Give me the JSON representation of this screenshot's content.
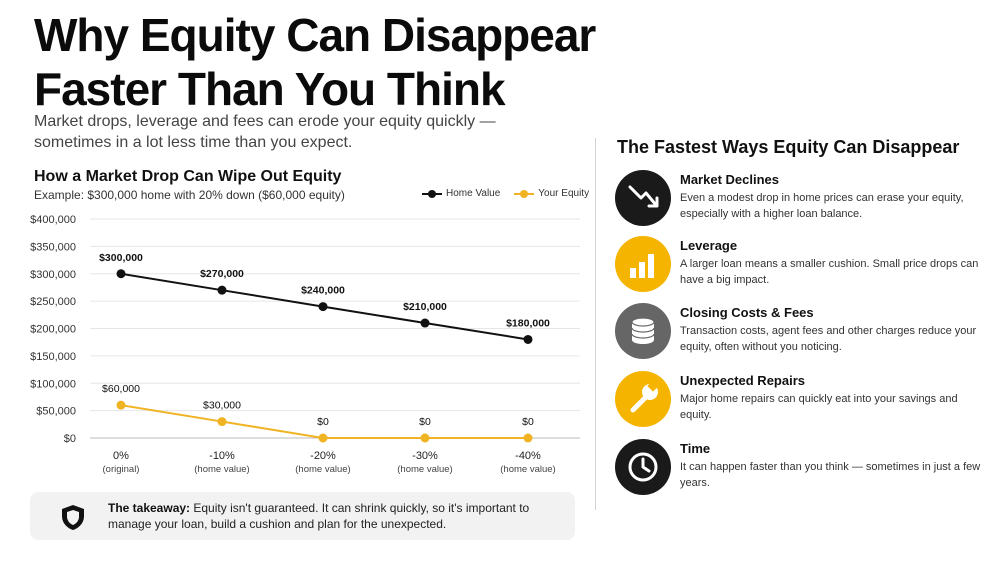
{
  "title_line1": "Why Equity Can Disappear",
  "title_line2": "Faster Than You Think",
  "subtitle": "Market drops, leverage and fees can erode your equity quickly — sometimes in a lot less time than you expect.",
  "colors": {
    "home_value": "#111111",
    "equity": "#f0b323",
    "accent": "#f5b400",
    "dark": "#1a1a1a",
    "gray": "#666666"
  },
  "chart_data": {
    "type": "line",
    "title": "How a Market Drop Can Wipe Out Equity",
    "subtitle": "Example: $300,000 home with 20% down ($60,000 equity)",
    "categories": [
      {
        "label": "0%",
        "sub": "(original)"
      },
      {
        "label": "-10%",
        "sub": "(home value)"
      },
      {
        "label": "-20%",
        "sub": "(home value)"
      },
      {
        "label": "-30%",
        "sub": "(home value)"
      },
      {
        "label": "-40%",
        "sub": "(home value)"
      }
    ],
    "series": [
      {
        "name": "Home Value",
        "color": "#111111",
        "values": [
          300000,
          270000,
          240000,
          210000,
          180000
        ],
        "labels": [
          "$300,000",
          "$270,000",
          "$240,000",
          "$210,000",
          "$180,000"
        ]
      },
      {
        "name": "Your Equity",
        "color": "#f0b323",
        "values": [
          60000,
          30000,
          0,
          0,
          0
        ],
        "labels": [
          "$60,000",
          "$30,000",
          "$0",
          "$0",
          "$0"
        ]
      }
    ],
    "ylim": [
      0,
      400000
    ],
    "yticks": [
      0,
      50000,
      100000,
      150000,
      200000,
      250000,
      300000,
      350000,
      400000
    ],
    "ytick_labels": [
      "$0",
      "$50,000",
      "$100,000",
      "$150,000",
      "$200,000",
      "$250,000",
      "$300,000",
      "$350,000",
      "$400,000"
    ],
    "grid": true,
    "legend": "top-right"
  },
  "takeaway": {
    "bold": "The takeaway:",
    "text": " Equity isn't guaranteed. It can shrink quickly, so it's important to manage your loan, build a cushion and plan for the unexpected."
  },
  "sidebar": {
    "title": "The Fastest Ways Equity Can Disappear",
    "items": [
      {
        "icon": "trend-down-icon",
        "title": "Market Declines",
        "desc": "Even a modest drop in home prices can erase your equity, especially with a higher loan balance."
      },
      {
        "icon": "bar-chart-icon",
        "title": "Leverage",
        "desc": "A larger loan means a smaller cushion. Small price drops can have a big impact."
      },
      {
        "icon": "coins-icon",
        "title": "Closing Costs & Fees",
        "desc": "Transaction costs, agent fees and other charges reduce your equity, often without you noticing."
      },
      {
        "icon": "wrench-icon",
        "title": "Unexpected Repairs",
        "desc": "Major home repairs can quickly eat into your savings and equity."
      },
      {
        "icon": "clock-icon",
        "title": "Time",
        "desc": "It can happen faster than you think — sometimes in just a few years."
      }
    ]
  }
}
